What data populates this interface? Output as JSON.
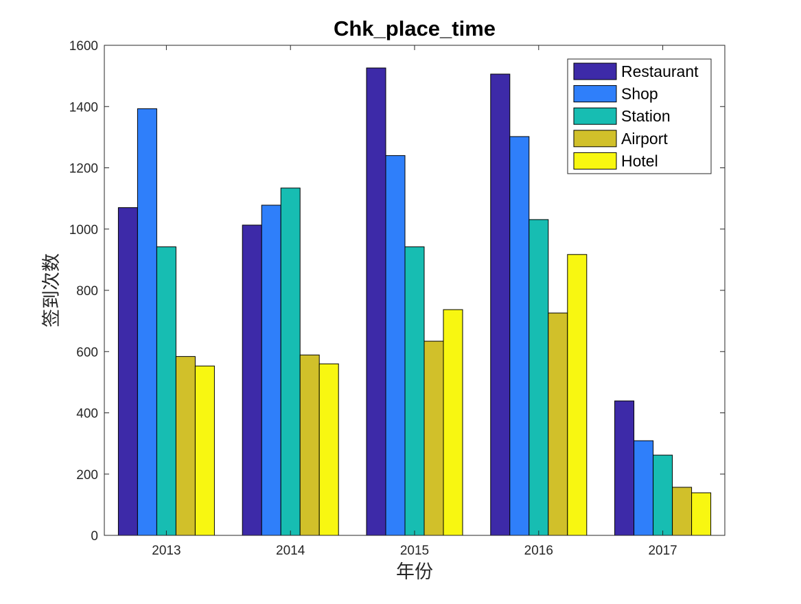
{
  "chart_data": {
    "type": "bar",
    "title": "Chk_place_time",
    "xlabel": "年份",
    "ylabel": "签到次数",
    "categories": [
      "2013",
      "2014",
      "2015",
      "2016",
      "2017"
    ],
    "ylim": [
      0,
      1600
    ],
    "yticks": [
      0,
      200,
      400,
      600,
      800,
      1000,
      1200,
      1400,
      1600
    ],
    "grid": false,
    "legend_position": "top-right",
    "series": [
      {
        "name": "Restaurant",
        "color": "#3d2aa8",
        "values": [
          1070,
          1013,
          1526,
          1506,
          439
        ]
      },
      {
        "name": "Shop",
        "color": "#2f7ffa",
        "values": [
          1393,
          1078,
          1240,
          1302,
          309
        ]
      },
      {
        "name": "Station",
        "color": "#17bdb2",
        "values": [
          942,
          1134,
          942,
          1031,
          262
        ]
      },
      {
        "name": "Airport",
        "color": "#d1c02a",
        "values": [
          584,
          589,
          634,
          726,
          157
        ]
      },
      {
        "name": "Hotel",
        "color": "#f8f711",
        "values": [
          553,
          560,
          737,
          917,
          139
        ]
      }
    ]
  }
}
